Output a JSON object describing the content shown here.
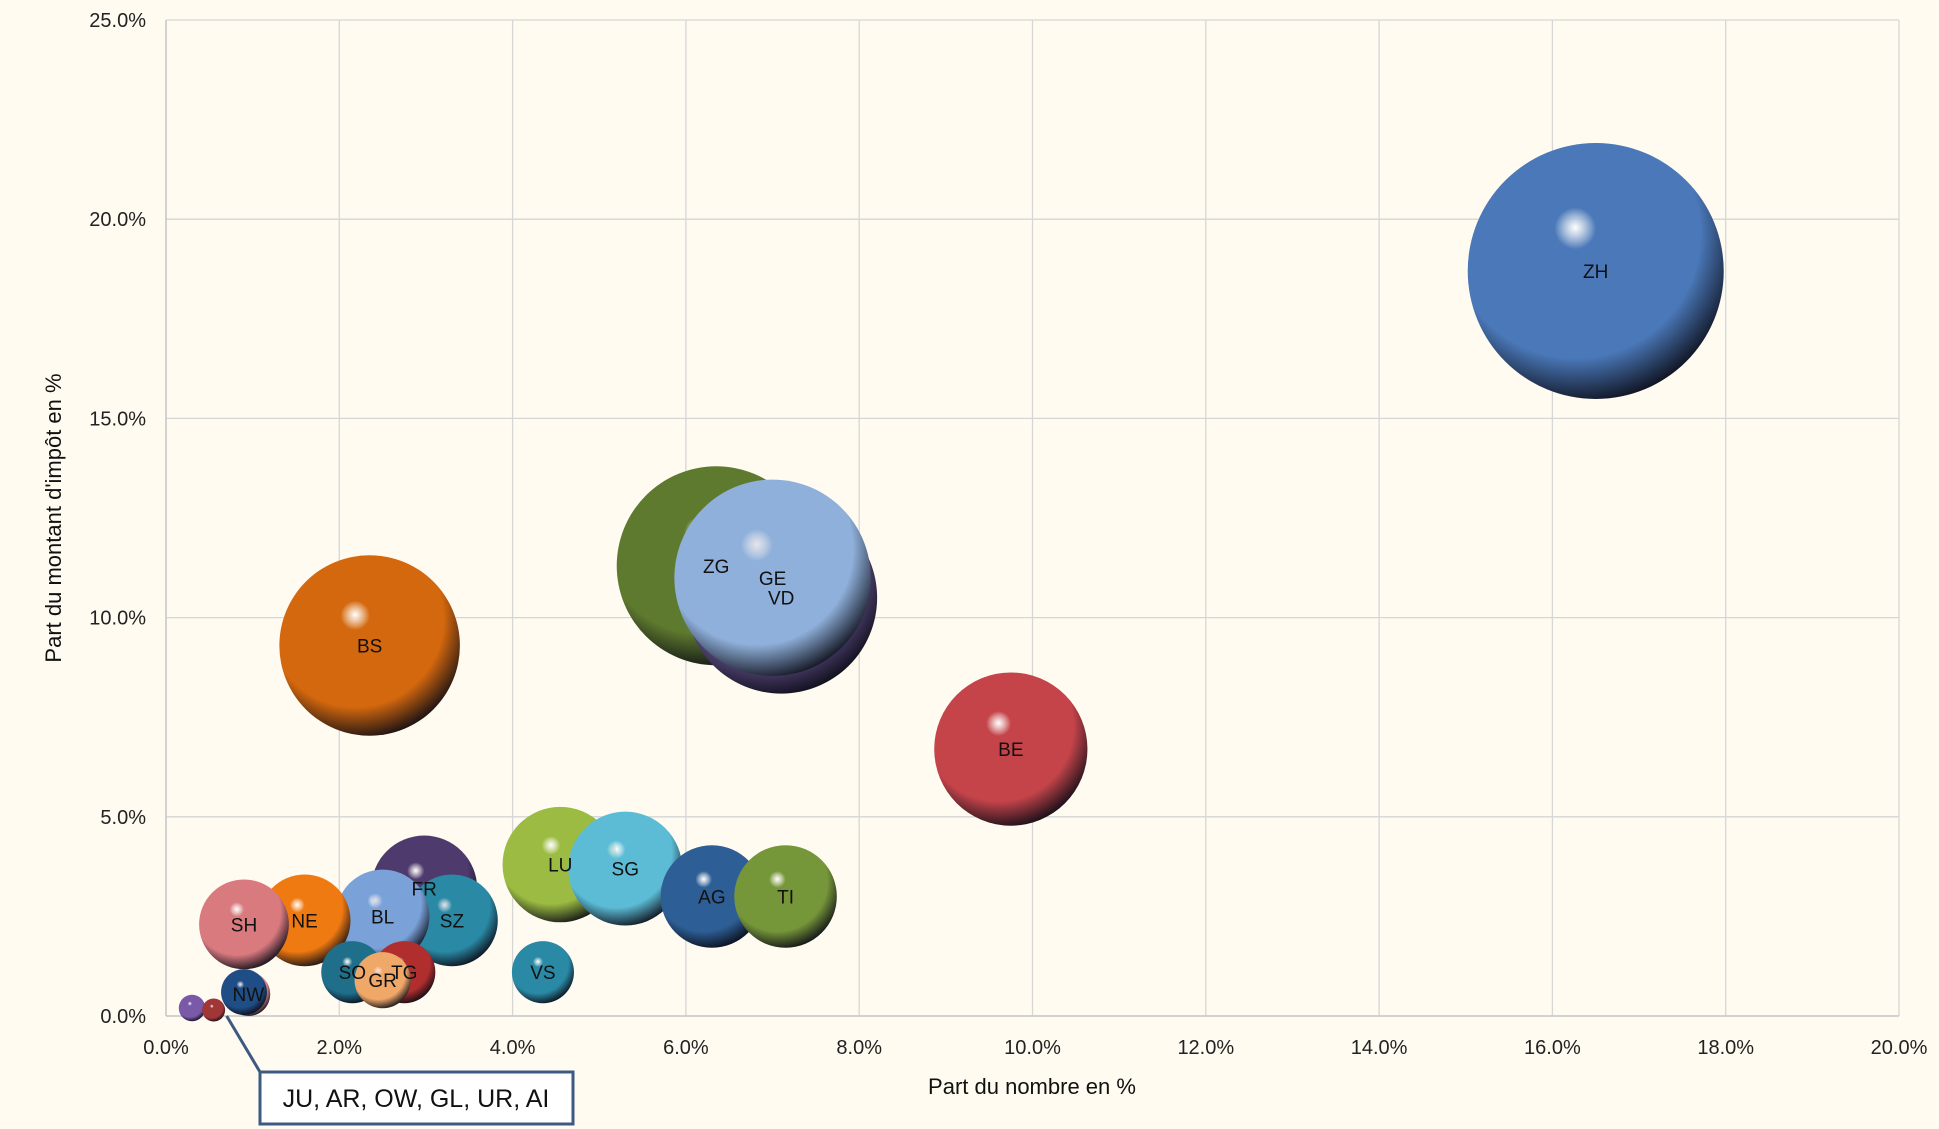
{
  "chart_data": {
    "type": "bubble",
    "xlabel": "Part du nombre en %",
    "ylabel": "Part du montant d'impôt en %",
    "xlim": [
      0,
      20
    ],
    "ylim": [
      0,
      25
    ],
    "x_ticks": [
      "0.0%",
      "2.0%",
      "4.0%",
      "6.0%",
      "8.0%",
      "10.0%",
      "12.0%",
      "14.0%",
      "16.0%",
      "18.0%",
      "20.0%"
    ],
    "y_ticks": [
      "0.0%",
      "5.0%",
      "10.0%",
      "15.0%",
      "20.0%",
      "25.0%"
    ],
    "grid": true,
    "points": [
      {
        "label": "ZH",
        "x": 16.5,
        "y": 18.7,
        "size": 18.7,
        "color": "#4a78b8"
      },
      {
        "label": "ZG",
        "x": 6.35,
        "y": 11.3,
        "size": 11.3,
        "color": "#5e7a2e"
      },
      {
        "label": "VD",
        "x": 7.1,
        "y": 10.5,
        "size": 10.5,
        "color": "#5a4a7e"
      },
      {
        "label": "GE",
        "x": 7.0,
        "y": 11.0,
        "size": 11.0,
        "color": "#8fb0da"
      },
      {
        "label": "BS",
        "x": 2.35,
        "y": 9.3,
        "size": 9.3,
        "color": "#d4680e"
      },
      {
        "label": "BE",
        "x": 9.75,
        "y": 6.7,
        "size": 6.7,
        "color": "#c4444a"
      },
      {
        "label": "LU",
        "x": 4.55,
        "y": 3.8,
        "size": 3.8,
        "color": "#9bbb42"
      },
      {
        "label": "SG",
        "x": 5.3,
        "y": 3.7,
        "size": 3.7,
        "color": "#5cbcd6"
      },
      {
        "label": "AG",
        "x": 6.3,
        "y": 3.0,
        "size": 3.0,
        "color": "#2d5e96"
      },
      {
        "label": "TI",
        "x": 7.15,
        "y": 3.0,
        "size": 3.0,
        "color": "#76963a"
      },
      {
        "label": "FR",
        "x": 2.98,
        "y": 3.2,
        "size": 3.2,
        "color": "#4e3a6c"
      },
      {
        "label": "SZ",
        "x": 3.3,
        "y": 2.4,
        "size": 2.4,
        "color": "#2a8aa6"
      },
      {
        "label": "BL",
        "x": 2.5,
        "y": 2.5,
        "size": 2.5,
        "color": "#7aa2d8"
      },
      {
        "label": "NE",
        "x": 1.6,
        "y": 2.4,
        "size": 2.4,
        "color": "#f07a12"
      },
      {
        "label": "SH",
        "x": 0.9,
        "y": 2.3,
        "size": 2.3,
        "color": "#d87a7e"
      },
      {
        "label": "VS",
        "x": 4.35,
        "y": 1.1,
        "size": 1.1,
        "color": "#2a8aa6"
      },
      {
        "label": "SO",
        "x": 2.15,
        "y": 1.1,
        "size": 1.1,
        "color": "#1f6e8a"
      },
      {
        "label": "TG",
        "x": 2.75,
        "y": 1.1,
        "size": 1.1,
        "color": "#b02e2e"
      },
      {
        "label": "GR",
        "x": 2.5,
        "y": 0.9,
        "size": 0.9,
        "color": "#f0a868"
      },
      {
        "label": "NW",
        "x": 0.95,
        "y": 0.55,
        "size": 0.55,
        "color": "#d88a8e"
      },
      {
        "label": "",
        "x": 0.9,
        "y": 0.6,
        "size": 0.6,
        "color": "#1f4e86"
      },
      {
        "label": "",
        "x": 0.3,
        "y": 0.2,
        "size": 0.2,
        "color": "#7a5aa8"
      },
      {
        "label": "",
        "x": 0.55,
        "y": 0.15,
        "size": 0.15,
        "color": "#a03636"
      }
    ],
    "annotation": {
      "text": "JU, AR, OW, GL, UR, AI",
      "x": 0.7,
      "y": 0.0
    }
  }
}
